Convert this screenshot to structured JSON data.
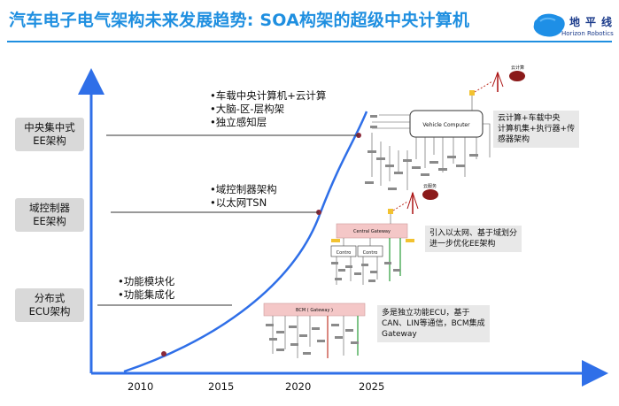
{
  "title": "汽车电子电气架构未来发展趋势: SOA构架的超级中央计算机",
  "logo": {
    "name": "地平线",
    "english": "Horizon Robotics",
    "icon": "blob-logo-icon",
    "color": "#1a3a8a"
  },
  "accent_color": "#1f8fe0",
  "stages": [
    {
      "line1": "中央集中式",
      "line2": "EE架构"
    },
    {
      "line1": "域控制器",
      "line2": "EE架构"
    },
    {
      "line1": "分布式",
      "line2": "ECU架构"
    }
  ],
  "bullet_groups": [
    {
      "items": [
        "•车载中央计算机+云计算",
        "•大脑-区-层构架",
        "•独立感知层"
      ]
    },
    {
      "items": [
        "•域控制器架构",
        "•以太网TSN"
      ]
    },
    {
      "items": [
        "•功能模块化",
        "•功能集成化"
      ]
    }
  ],
  "years": [
    "2010",
    "2015",
    "2020",
    "2025"
  ],
  "notes": [
    {
      "lines": [
        "云计算+车载中央",
        "计算机集+执行器+传",
        "感器架构"
      ]
    },
    {
      "lines": [
        "引入以太网、基于域划分",
        "进一步优化EE架构"
      ]
    },
    {
      "lines": [
        "多是独立功能ECU，基于",
        "CAN、LIN等通信，BCM集成",
        "Gateway"
      ]
    }
  ],
  "diagram_labels": {
    "vehicle_computer": "Vehicle Computer",
    "cloud_top": "云计算",
    "cloud_mid": "云服务",
    "central_gateway": "Central Gateway",
    "controller_a": "Contro",
    "controller_b": "Contro",
    "bcm": "BCM ( Gateway )"
  }
}
